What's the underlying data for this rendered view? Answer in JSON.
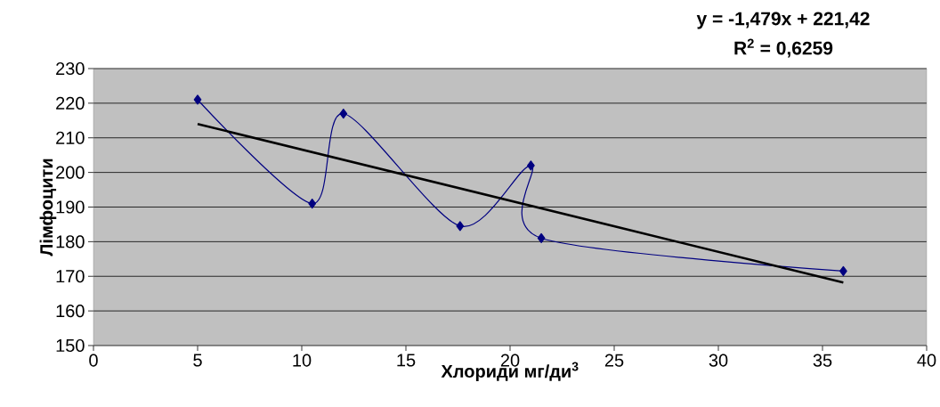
{
  "chart_data": {
    "type": "line",
    "xlabel": "Хлориди мг/ди$^{3}$",
    "ylabel": "Лімфоцити",
    "annotations": [
      "y = -1,479x + 221,42",
      "R$^{2}$ = 0,6259"
    ],
    "series": [
      {
        "color": "#000080",
        "marker": "diamond",
        "x": [
          5,
          10.5,
          12,
          17.6,
          21,
          21.5,
          36
        ],
        "values": [
          221,
          191,
          217,
          184.5,
          202,
          181,
          171.5
        ]
      },
      {
        "color": "#000000",
        "marker": "none",
        "x": [
          5,
          36
        ],
        "values": [
          214.0,
          168.2
        ]
      }
    ],
    "xlim": [
      0,
      40
    ],
    "xticks": [
      0,
      5,
      10,
      15,
      20,
      25,
      30,
      35,
      40
    ],
    "ylim": [
      150,
      230
    ],
    "yticks": [
      150,
      160,
      170,
      180,
      190,
      200,
      210,
      220,
      230
    ],
    "grid": "y"
  }
}
